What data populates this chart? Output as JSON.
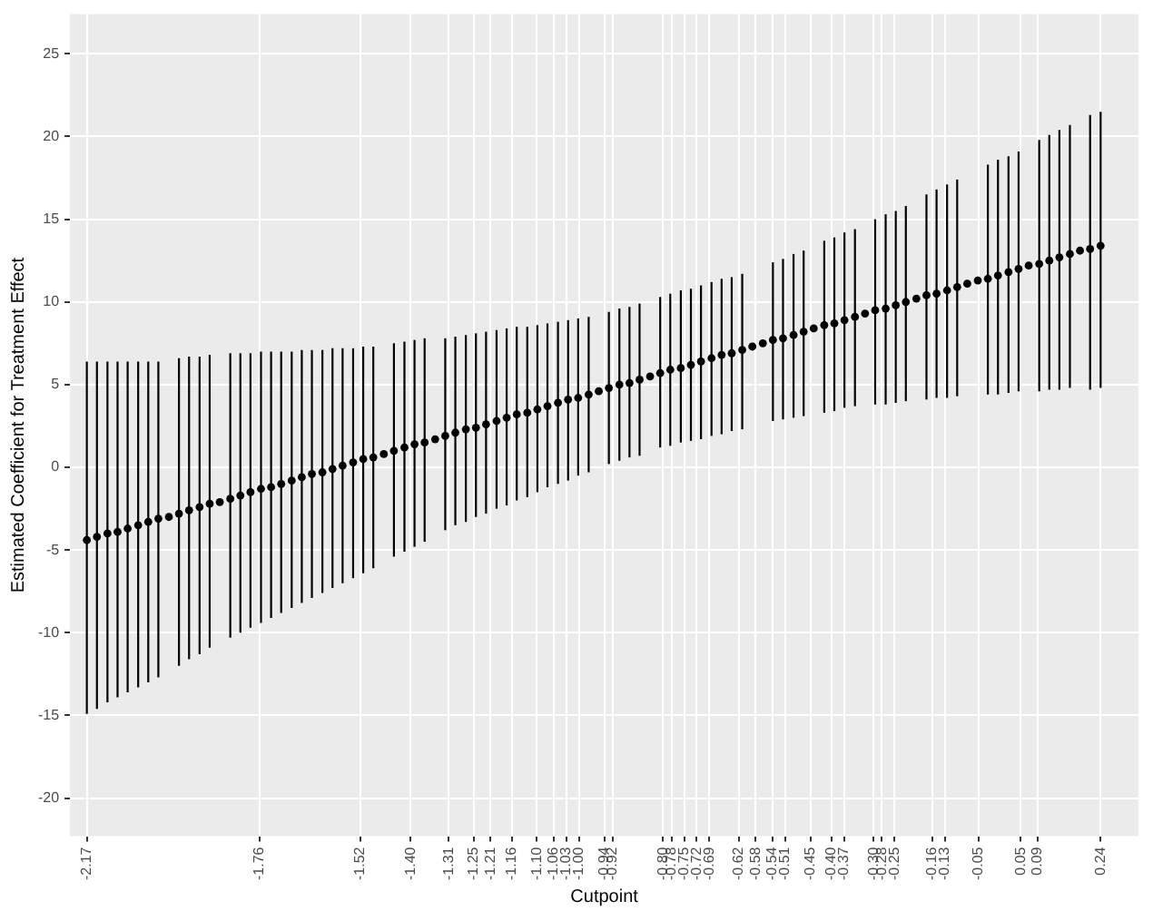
{
  "chart_data": {
    "type": "scatter",
    "xlabel": "Cutpoint",
    "ylabel": "Estimated Coefficient for Treatment Effect",
    "marker": "circle",
    "grid": true,
    "legend": false,
    "xlim": [
      -2.21,
      0.33
    ],
    "ylim": [
      -22.3,
      27.4
    ],
    "yticks": [
      -20,
      -15,
      -10,
      -5,
      0,
      5,
      10,
      15,
      20,
      25
    ],
    "xticks": [
      {
        "value": -2.17,
        "label": "-2.17"
      },
      {
        "value": -1.76,
        "label": "-1.76"
      },
      {
        "value": -1.52,
        "label": "-1.52"
      },
      {
        "value": -1.4,
        "label": "-1.40"
      },
      {
        "value": -1.31,
        "label": "-1.31"
      },
      {
        "value": -1.25,
        "label": "-1.25"
      },
      {
        "value": -1.21,
        "label": "-1.21"
      },
      {
        "value": -1.16,
        "label": "-1.16"
      },
      {
        "value": -1.1,
        "label": "-1.10"
      },
      {
        "value": -1.06,
        "label": "-1.06"
      },
      {
        "value": -1.03,
        "label": "-1.03"
      },
      {
        "value": -1.0,
        "label": "-1.00"
      },
      {
        "value": -0.94,
        "label": "-0.94"
      },
      {
        "value": -0.92,
        "label": "-0.92"
      },
      {
        "value": -0.8,
        "label": "-0.80"
      },
      {
        "value": -0.78,
        "label": "-0.78"
      },
      {
        "value": -0.75,
        "label": "-0.75"
      },
      {
        "value": -0.72,
        "label": "-0.72"
      },
      {
        "value": -0.69,
        "label": "-0.69"
      },
      {
        "value": -0.62,
        "label": "-0.62"
      },
      {
        "value": -0.58,
        "label": "-0.58"
      },
      {
        "value": -0.54,
        "label": "-0.54"
      },
      {
        "value": -0.51,
        "label": "-0.51"
      },
      {
        "value": -0.45,
        "label": "-0.45"
      },
      {
        "value": -0.4,
        "label": "-0.40"
      },
      {
        "value": -0.37,
        "label": "-0.37"
      },
      {
        "value": -0.3,
        "label": "-0.30"
      },
      {
        "value": -0.28,
        "label": "-0.28"
      },
      {
        "value": -0.25,
        "label": "-0.25"
      },
      {
        "value": -0.16,
        "label": "-0.16"
      },
      {
        "value": -0.13,
        "label": "-0.13"
      },
      {
        "value": -0.05,
        "label": "-0.05"
      },
      {
        "value": 0.05,
        "label": "0.05"
      },
      {
        "value": 0.09,
        "label": "0.09"
      },
      {
        "value": 0.24,
        "label": "0.24"
      }
    ],
    "series": [
      {
        "color": "#000000",
        "x": [
          -2.17,
          -2.146,
          -2.121,
          -2.097,
          -2.073,
          -2.048,
          -2.024,
          -2.0,
          -1.975,
          -1.951,
          -1.927,
          -1.902,
          -1.878,
          -1.854,
          -1.829,
          -1.805,
          -1.781,
          -1.756,
          -1.732,
          -1.708,
          -1.683,
          -1.659,
          -1.635,
          -1.61,
          -1.586,
          -1.562,
          -1.537,
          -1.513,
          -1.489,
          -1.464,
          -1.44,
          -1.415,
          -1.391,
          -1.367,
          -1.342,
          -1.318,
          -1.294,
          -1.269,
          -1.245,
          -1.221,
          -1.196,
          -1.172,
          -1.148,
          -1.123,
          -1.099,
          -1.075,
          -1.05,
          -1.026,
          -1.002,
          -0.977,
          -0.953,
          -0.929,
          -0.904,
          -0.88,
          -0.856,
          -0.831,
          -0.807,
          -0.783,
          -0.758,
          -0.734,
          -0.71,
          -0.685,
          -0.661,
          -0.637,
          -0.612,
          -0.588,
          -0.563,
          -0.539,
          -0.515,
          -0.49,
          -0.466,
          -0.442,
          -0.417,
          -0.393,
          -0.369,
          -0.344,
          -0.32,
          -0.296,
          -0.271,
          -0.247,
          -0.223,
          -0.198,
          -0.174,
          -0.15,
          -0.125,
          -0.101,
          -0.077,
          -0.052,
          -0.028,
          -0.004,
          0.021,
          0.045,
          0.069,
          0.094,
          0.118,
          0.142,
          0.167,
          0.191,
          0.215,
          0.24
        ],
        "values": [
          -4.4,
          -4.2,
          -4.0,
          -3.9,
          -3.7,
          -3.5,
          -3.3,
          -3.1,
          -3.0,
          -2.8,
          -2.6,
          -2.4,
          -2.2,
          -2.1,
          -1.9,
          -1.7,
          -1.5,
          -1.3,
          -1.2,
          -1.0,
          -0.8,
          -0.6,
          -0.4,
          -0.3,
          -0.1,
          0.1,
          0.3,
          0.5,
          0.6,
          0.8,
          1.0,
          1.2,
          1.4,
          1.5,
          1.7,
          1.9,
          2.1,
          2.3,
          2.4,
          2.6,
          2.8,
          3.0,
          3.2,
          3.3,
          3.5,
          3.7,
          3.9,
          4.1,
          4.2,
          4.4,
          4.6,
          4.8,
          5.0,
          5.1,
          5.3,
          5.5,
          5.7,
          5.9,
          6.0,
          6.2,
          6.4,
          6.6,
          6.8,
          6.9,
          7.1,
          7.3,
          7.5,
          7.7,
          7.8,
          8.0,
          8.2,
          8.4,
          8.6,
          8.7,
          8.9,
          9.1,
          9.3,
          9.5,
          9.6,
          9.8,
          10.0,
          10.2,
          10.4,
          10.5,
          10.7,
          10.9,
          11.1,
          11.3,
          11.4,
          11.6,
          11.8,
          12.0,
          12.2,
          12.3,
          12.5,
          12.7,
          12.9,
          13.1,
          13.2,
          13.4
        ],
        "errors": [
          [
            -14.9,
            6.4
          ],
          [
            -14.6,
            6.4
          ],
          [
            -14.2,
            6.4
          ],
          [
            -13.9,
            6.4
          ],
          [
            -13.6,
            6.4
          ],
          [
            -13.3,
            6.4
          ],
          [
            -13.0,
            6.4
          ],
          [
            -12.7,
            6.4
          ],
          null,
          [
            -12.0,
            6.6
          ],
          [
            -11.6,
            6.7
          ],
          [
            -11.3,
            6.7
          ],
          [
            -10.9,
            6.8
          ],
          null,
          [
            -10.3,
            6.9
          ],
          [
            -10.0,
            6.9
          ],
          [
            -9.7,
            6.9
          ],
          [
            -9.4,
            7.0
          ],
          [
            -9.1,
            7.0
          ],
          [
            -8.8,
            7.0
          ],
          [
            -8.5,
            7.0
          ],
          [
            -8.2,
            7.1
          ],
          [
            -7.9,
            7.1
          ],
          [
            -7.6,
            7.1
          ],
          [
            -7.3,
            7.2
          ],
          [
            -7.0,
            7.2
          ],
          [
            -6.7,
            7.2
          ],
          [
            -6.4,
            7.3
          ],
          [
            -6.1,
            7.3
          ],
          null,
          [
            -5.4,
            7.5
          ],
          [
            -5.1,
            7.6
          ],
          [
            -4.8,
            7.7
          ],
          [
            -4.5,
            7.8
          ],
          null,
          [
            -3.8,
            7.8
          ],
          [
            -3.5,
            7.9
          ],
          [
            -3.3,
            8.0
          ],
          [
            -3.0,
            8.1
          ],
          [
            -2.8,
            8.2
          ],
          [
            -2.5,
            8.3
          ],
          [
            -2.3,
            8.4
          ],
          [
            -2.0,
            8.5
          ],
          [
            -1.8,
            8.5
          ],
          [
            -1.5,
            8.6
          ],
          [
            -1.2,
            8.7
          ],
          [
            -1.0,
            8.8
          ],
          [
            -0.8,
            8.9
          ],
          [
            -0.5,
            9.0
          ],
          [
            -0.3,
            9.1
          ],
          null,
          [
            0.2,
            9.4
          ],
          [
            0.4,
            9.6
          ],
          [
            0.6,
            9.7
          ],
          [
            0.7,
            9.9
          ],
          null,
          [
            1.2,
            10.3
          ],
          [
            1.3,
            10.5
          ],
          [
            1.5,
            10.7
          ],
          [
            1.6,
            10.8
          ],
          [
            1.7,
            11.0
          ],
          [
            1.9,
            11.2
          ],
          [
            2.0,
            11.4
          ],
          [
            2.2,
            11.5
          ],
          [
            2.3,
            11.7
          ],
          null,
          null,
          [
            2.8,
            12.4
          ],
          [
            2.9,
            12.6
          ],
          [
            3.0,
            12.9
          ],
          [
            3.1,
            13.1
          ],
          null,
          [
            3.3,
            13.7
          ],
          [
            3.4,
            13.9
          ],
          [
            3.6,
            14.2
          ],
          [
            3.7,
            14.4
          ],
          null,
          [
            3.8,
            15.0
          ],
          [
            3.8,
            15.3
          ],
          [
            3.9,
            15.5
          ],
          [
            4.0,
            15.8
          ],
          null,
          [
            4.1,
            16.5
          ],
          [
            4.2,
            16.8
          ],
          [
            4.2,
            17.1
          ],
          [
            4.3,
            17.4
          ],
          null,
          null,
          [
            4.4,
            18.3
          ],
          [
            4.4,
            18.6
          ],
          [
            4.5,
            18.8
          ],
          [
            4.6,
            19.1
          ],
          null,
          [
            4.6,
            19.8
          ],
          [
            4.7,
            20.1
          ],
          [
            4.7,
            20.4
          ],
          [
            4.8,
            20.7
          ],
          null,
          [
            4.7,
            21.3
          ],
          [
            4.8,
            21.5
          ]
        ]
      }
    ]
  }
}
